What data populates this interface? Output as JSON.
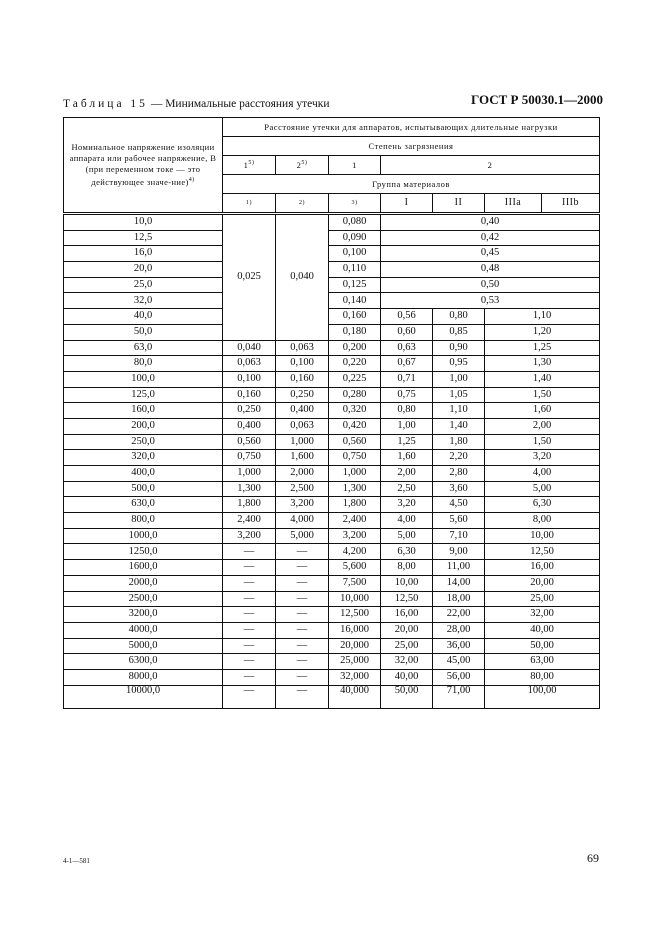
{
  "header": "ГОСТ Р 50030.1—2000",
  "caption": {
    "prefix": "Таблица 15",
    "text": " — Минимальные расстояния утечки"
  },
  "table": {
    "col0_header": "Номинальное напряжение изоляции аппарата или рабочее напряжение, В (при переменном токе — это действующее значе-ние)",
    "col0_sup": "4)",
    "top_header": "Расстояние утечки для аппаратов, испытывающих длительные нагрузки",
    "pollution_header": "Степень загрязнения",
    "pollution": [
      {
        "v": "1",
        "sup": "5)"
      },
      {
        "v": "2",
        "sup": "5)"
      },
      {
        "v": "1",
        "sup": ""
      },
      {
        "v": "2",
        "sup": ""
      }
    ],
    "material_header": "Группа материалов",
    "materials": [
      "1)",
      "2)",
      "3)",
      "I",
      "II",
      "IIIa",
      "IIIb"
    ],
    "merged_low": {
      "p1": "0,025",
      "p2": "0,040"
    },
    "rows": [
      [
        "10,0",
        "0,080",
        "0,40"
      ],
      [
        "12,5",
        "0,090",
        "0,42"
      ],
      [
        "16,0",
        "0,100",
        "0,45"
      ],
      [
        "20,0",
        "0,110",
        "0,48"
      ],
      [
        "25,0",
        "0,125",
        "0,50"
      ],
      [
        "32,0",
        "0,140",
        "0,53"
      ],
      [
        "40,0",
        "0,160",
        "0,56",
        "0,80",
        "1,10"
      ],
      [
        "50,0",
        "0,180",
        "0,60",
        "0,85",
        "1,20"
      ],
      [
        "63,0",
        "0,040",
        "0,063",
        "0,200",
        "0,63",
        "0,90",
        "1,25"
      ],
      [
        "80,0",
        "0,063",
        "0,100",
        "0,220",
        "0,67",
        "0,95",
        "1,30"
      ],
      [
        "100,0",
        "0,100",
        "0,160",
        "0,225",
        "0,71",
        "1,00",
        "1,40"
      ],
      [
        "125,0",
        "0,160",
        "0,250",
        "0,280",
        "0,75",
        "1,05",
        "1,50"
      ],
      [
        "160,0",
        "0,250",
        "0,400",
        "0,320",
        "0,80",
        "1,10",
        "1,60"
      ],
      [
        "200,0",
        "0,400",
        "0,063",
        "0,420",
        "1,00",
        "1,40",
        "2,00"
      ],
      [
        "250,0",
        "0,560",
        "1,000",
        "0,560",
        "1,25",
        "1,80",
        "1,50"
      ],
      [
        "320,0",
        "0,750",
        "1,600",
        "0,750",
        "1,60",
        "2,20",
        "3,20"
      ],
      [
        "400,0",
        "1,000",
        "2,000",
        "1,000",
        "2,00",
        "2,80",
        "4,00"
      ],
      [
        "500,0",
        "1,300",
        "2,500",
        "1,300",
        "2,50",
        "3,60",
        "5,00"
      ],
      [
        "630,0",
        "1,800",
        "3,200",
        "1,800",
        "3,20",
        "4,50",
        "6,30"
      ],
      [
        "800,0",
        "2,400",
        "4,000",
        "2,400",
        "4,00",
        "5,60",
        "8,00"
      ],
      [
        "1000,0",
        "3,200",
        "5,000",
        "3,200",
        "5,00",
        "7,10",
        "10,00"
      ],
      [
        "1250,0",
        "—",
        "—",
        "4,200",
        "6,30",
        "9,00",
        "12,50"
      ],
      [
        "1600,0",
        "—",
        "—",
        "5,600",
        "8,00",
        "11,00",
        "16,00"
      ],
      [
        "2000,0",
        "—",
        "—",
        "7,500",
        "10,00",
        "14,00",
        "20,00"
      ],
      [
        "2500,0",
        "—",
        "—",
        "10,000",
        "12,50",
        "18,00",
        "25,00"
      ],
      [
        "3200,0",
        "—",
        "—",
        "12,500",
        "16,00",
        "22,00",
        "32,00"
      ],
      [
        "4000,0",
        "—",
        "—",
        "16,000",
        "20,00",
        "28,00",
        "40,00"
      ],
      [
        "5000,0",
        "—",
        "—",
        "20,000",
        "25,00",
        "36,00",
        "50,00"
      ],
      [
        "6300,0",
        "—",
        "—",
        "25,000",
        "32,00",
        "45,00",
        "63,00"
      ],
      [
        "8000,0",
        "—",
        "—",
        "32,000",
        "40,00",
        "56,00",
        "80,00"
      ],
      [
        "10000,0",
        "—",
        "—",
        "40,000",
        "50,00",
        "71,00",
        "100,00"
      ]
    ]
  },
  "footer": {
    "code": "4-1—581",
    "page": "69"
  }
}
